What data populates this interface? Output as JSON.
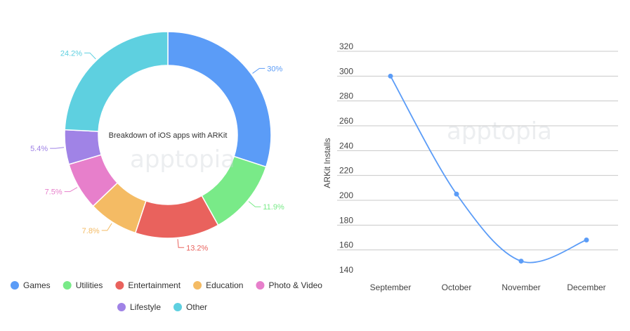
{
  "watermark": "apptopia",
  "chart_data": [
    {
      "type": "pie",
      "title": "Breakdown of iOS apps with ARKit",
      "slices": [
        {
          "name": "Games",
          "value": 30,
          "label": "30%",
          "color": "#5b9cf7"
        },
        {
          "name": "Utilities",
          "value": 11.9,
          "label": "11.9%",
          "color": "#79ea88"
        },
        {
          "name": "Entertainment",
          "value": 13.2,
          "label": "13.2%",
          "color": "#e9625d"
        },
        {
          "name": "Education",
          "value": 7.8,
          "label": "7.8%",
          "color": "#f4bb64"
        },
        {
          "name": "Photo & Video",
          "value": 7.5,
          "label": "7.5%",
          "color": "#e77fcb"
        },
        {
          "name": "Lifestyle",
          "value": 5.4,
          "label": "5.4%",
          "color": "#a083e6"
        },
        {
          "name": "Other",
          "value": 24.2,
          "label": "24.2%",
          "color": "#5ed0e0"
        }
      ],
      "legend_placement": "bottom"
    },
    {
      "type": "line",
      "categories": [
        "September",
        "October",
        "November",
        "December"
      ],
      "series": [
        {
          "values": [
            300,
            205,
            151,
            168
          ]
        }
      ],
      "xlabel": "",
      "ylabel": "ARKit Installs",
      "ylim": [
        140,
        320
      ],
      "yticks": [
        140,
        160,
        180,
        200,
        220,
        240,
        260,
        280,
        300,
        320
      ],
      "grid": true,
      "color": "#5b9cf7"
    }
  ]
}
